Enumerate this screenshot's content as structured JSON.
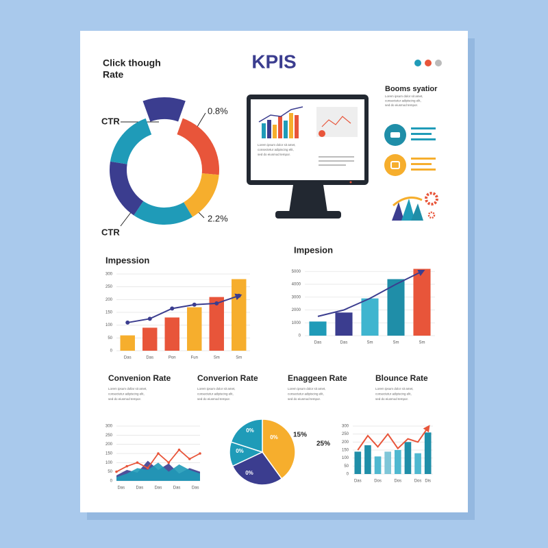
{
  "header": {
    "title": "KPIS",
    "subtitle": [
      "Click though",
      "Rate"
    ]
  },
  "monitor": {
    "text": [
      "Lorem ipsum dolor sit amet,",
      "consectetur adipiscing elit,",
      "sed do eiusmod tempor."
    ]
  },
  "side": {
    "title": "Booms syatior",
    "text": [
      "Lorem ipsum dolor sit amet,",
      "consectetur adipiscing elit,",
      "sed do eiusmod tempor."
    ]
  },
  "kpis": [
    {
      "title": "Convenion Rate",
      "text": [
        "Lorem ipsum dollar sit amet,",
        "consectetur adipiscing elit,",
        "sed do eiusmod tempor."
      ]
    },
    {
      "title": "Converion Rate",
      "text": [
        "Lorem ipsum dolor sit amet,",
        "consectetur adipiscing elit,",
        "sed do eiusmod tempor."
      ]
    },
    {
      "title": "Enaggeen Rate",
      "text": [
        "Lorem ipsum dolor sit amet,",
        "consectetur adipiscing elit,",
        "sed do eiusmod tempor."
      ]
    },
    {
      "title": "Blounce Rate",
      "text": [
        "Lorem ipsum dolor sit amet,",
        "consectetur adipiscing elit,",
        "sed do eiusmod tempor."
      ]
    }
  ],
  "chart_data": [
    {
      "type": "donut",
      "values": [
        11,
        21,
        15,
        18,
        18,
        17
      ],
      "colors": [
        "#3b3d8f",
        "#e8553a",
        "#f6ae2d",
        "#1f9bb8",
        "#3b3d8f",
        "#1f9bb8"
      ],
      "annotations": [
        "CTR",
        "CTR",
        "0.8%",
        "2.2%"
      ]
    },
    {
      "type": "bar",
      "title": "Impession",
      "categories": [
        "Das",
        "Das",
        "Pon",
        "Fun",
        "Sm",
        "Sm"
      ],
      "values": [
        60,
        90,
        130,
        170,
        210,
        280
      ],
      "colors": [
        "#f6ae2d",
        "#e8553a",
        "#e8553a",
        "#f6ae2d",
        "#e8553a",
        "#f6ae2d"
      ],
      "line": [
        110,
        125,
        165,
        180,
        185,
        215
      ],
      "line_color": "#3b3d8f",
      "ylim": [
        0,
        300
      ],
      "yticks": [
        0,
        50,
        100,
        150,
        200,
        250,
        300
      ],
      "grid": true
    },
    {
      "type": "bar",
      "title": "Impesion",
      "categories": [
        "Das",
        "Das",
        "Sm",
        "Sm",
        "Sm"
      ],
      "values": [
        1100,
        1800,
        2900,
        4400,
        5200
      ],
      "colors": [
        "#1f9bb8",
        "#3b3d8f",
        "#3fb5cf",
        "#1f8ea8",
        "#e8553a"
      ],
      "line": [
        1500,
        2000,
        2900,
        4000,
        5000
      ],
      "line_color": "#3b3d8f",
      "ylim": [
        0,
        5600
      ],
      "yticks": [
        0,
        1000,
        2000,
        3000,
        4000,
        5000
      ],
      "grid": true
    },
    {
      "type": "area",
      "categories": [
        "Das",
        null,
        "Das",
        null,
        "Das",
        null,
        "Das",
        null,
        "Das"
      ],
      "series": [
        {
          "color": "#3b3d8f",
          "fill": true,
          "values": [
            30,
            60,
            45,
            110,
            60,
            95,
            40,
            70,
            50
          ]
        },
        {
          "color": "#1f9bb8",
          "fill": true,
          "values": [
            20,
            40,
            70,
            60,
            100,
            50,
            90,
            60,
            40
          ]
        },
        {
          "color": "#e8553a",
          "fill": false,
          "values": [
            50,
            80,
            100,
            70,
            150,
            100,
            170,
            120,
            150
          ]
        }
      ],
      "ylim": [
        0,
        300
      ],
      "yticks": [
        0,
        50,
        100,
        150,
        200,
        250,
        300
      ],
      "grid": true
    },
    {
      "type": "pie",
      "values": [
        40,
        28,
        12,
        20
      ],
      "colors": [
        "#f6ae2d",
        "#3b3d8f",
        "#1f9bb8",
        "#1f9bb8"
      ],
      "annotations": [
        "0%",
        "0%",
        "0%",
        "0%",
        "15%",
        "25%"
      ]
    },
    {
      "type": "bar",
      "categories": [
        "Das",
        null,
        "Dos",
        null,
        "Dos",
        null,
        "Dos",
        "Dis"
      ],
      "values": [
        140,
        180,
        110,
        140,
        150,
        200,
        130,
        260
      ],
      "colors": [
        "#1f8ea8",
        "#1f8ea8",
        "#4fb8d0",
        "#7fc6d8",
        "#4fb8d0",
        "#1f8ea8",
        "#4fb8d0",
        "#1f8ea8"
      ],
      "line": [
        150,
        240,
        170,
        250,
        160,
        220,
        200,
        290
      ],
      "line_color": "#e8553a",
      "ylim": [
        0,
        300
      ],
      "yticks": [
        0,
        50,
        100,
        150,
        200,
        250,
        300
      ],
      "grid": true
    }
  ]
}
